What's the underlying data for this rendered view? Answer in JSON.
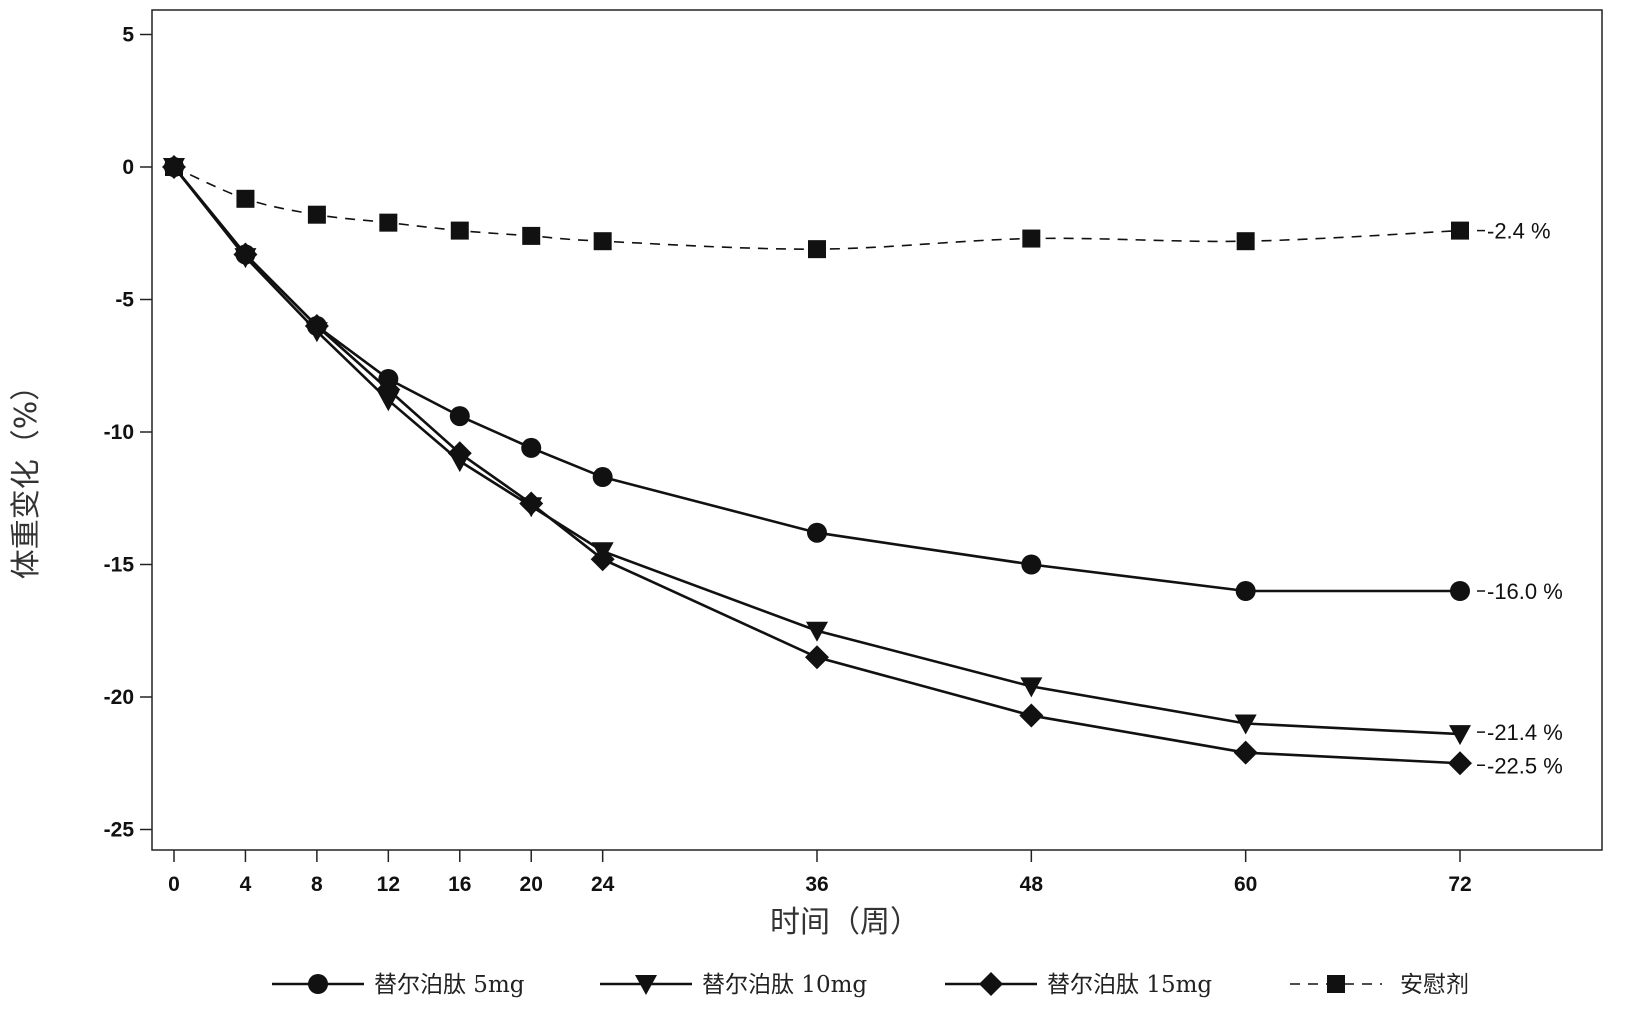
{
  "chart_data": {
    "type": "line",
    "xlabel": "时间（周）",
    "ylabel": "体重变化（%）",
    "x": [
      0,
      4,
      8,
      12,
      16,
      20,
      24,
      36,
      48,
      60,
      72
    ],
    "x_ticks": [
      "0",
      "4",
      "8",
      "12",
      "16",
      "20",
      "24",
      "36",
      "48",
      "60",
      "72"
    ],
    "ylim": [
      -26,
      6
    ],
    "y_ticks": [
      5,
      0,
      -5,
      -10,
      -15,
      -20,
      -25
    ],
    "y_tick_labels": [
      "5",
      "0",
      "-5",
      "-10",
      "-15",
      "-20",
      "-25"
    ],
    "grid": false,
    "legend_position": "bottom",
    "series": [
      {
        "name": "替尔泊肽 5mg",
        "marker": "circle",
        "dash": "solid",
        "values": [
          0,
          -3.3,
          -6.0,
          -8.0,
          -9.4,
          -10.6,
          -11.7,
          -13.8,
          -15.0,
          -16.0,
          -16.0
        ],
        "end_label": "-16.0 %"
      },
      {
        "name": "替尔泊肽 10mg",
        "marker": "triangle-down",
        "dash": "solid",
        "values": [
          0,
          -3.4,
          -6.2,
          -8.8,
          -11.1,
          -12.8,
          -14.5,
          -17.5,
          -19.6,
          -21.0,
          -21.4
        ],
        "end_label": "-21.4 %"
      },
      {
        "name": "替尔泊肽 15mg",
        "marker": "diamond",
        "dash": "solid",
        "values": [
          0,
          -3.3,
          -6.0,
          -8.4,
          -10.8,
          -12.7,
          -14.8,
          -18.5,
          -20.7,
          -22.1,
          -22.5
        ],
        "end_label": "-22.5 %"
      },
      {
        "name": "安慰剂",
        "marker": "square",
        "dash": "dashed",
        "values": [
          0,
          -1.2,
          -1.8,
          -2.1,
          -2.4,
          -2.6,
          -2.8,
          -3.1,
          -2.7,
          -2.8,
          -2.4
        ],
        "end_label": "-2.4 %"
      }
    ],
    "colors": {
      "line": "#111111",
      "axis": "#222222"
    }
  }
}
